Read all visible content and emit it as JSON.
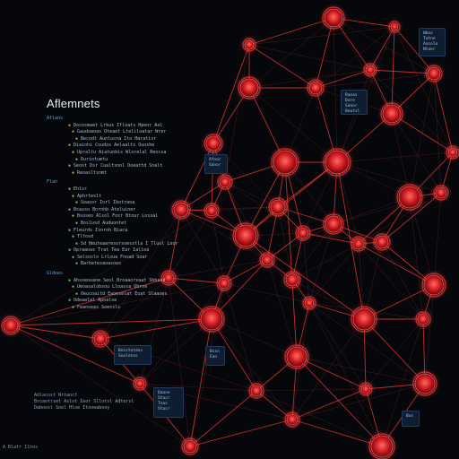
{
  "panel": {
    "title": "Aflemnets",
    "sections": [
      {
        "label": "Aflans",
        "items": [
          {
            "text": "Docosmaet Lrkus Ifloats Hpenr Aol",
            "mark": "y"
          },
          {
            "text": "Gaudoaoas Oteaet Lteliloatar Wrer",
            "mark": "y"
          },
          {
            "text": "Becodt Aunlucna Ito Haratisr",
            "mark": "y"
          },
          {
            "text": "Diaiohi Coudos Aelaalts Ouoshe",
            "mark": "y"
          },
          {
            "text": "Upraltu Aiatunbis Wlorelal Reocsa",
            "mark": "y"
          },
          {
            "text": "Ruriotumtu",
            "mark": "y"
          },
          {
            "text": "Seost Dsr Cualtsnol Ooeattd Snalt",
            "mark": "y"
          },
          {
            "text": "Reoasltsnmt",
            "mark": "y"
          }
        ]
      },
      {
        "label": "Flan",
        "items": [
          {
            "text": "Ehlsr",
            "mark": "y"
          },
          {
            "text": "Aphrteslt",
            "mark": "y"
          },
          {
            "text": "Soasor Iorl Ibotraoa",
            "mark": "y"
          },
          {
            "text": "Bsasso Bnrnhb Ateluiner",
            "mark": "y"
          },
          {
            "text": "Bsoseo Alsol Fosr Btnur Lossal",
            "mark": "y"
          },
          {
            "text": "Boslusd Auduontet",
            "mark": "y"
          },
          {
            "text": "Fleurds Isnroh Biaca",
            "mark": "g"
          },
          {
            "text": "Tlfosd",
            "mark": "g"
          },
          {
            "text": "Sd Heuteaaresorsoesstla I Tluol Loor",
            "mark": "g"
          },
          {
            "text": "Opraaoas Trat Tea Ear Ialloa",
            "mark": "g"
          },
          {
            "text": "Selsoslo Lrloua Fnoad Soar",
            "mark": "g"
          },
          {
            "text": "Barbetesaoasoes",
            "mark": "g"
          }
        ]
      },
      {
        "label": "Gldoes",
        "items": [
          {
            "text": "Ahsoeouaoe Seol Broaaorsaat Sbbasd",
            "mark": "g"
          },
          {
            "text": "Ueoasalobsou Lloassa Ubrse",
            "mark": "g"
          },
          {
            "text": "Oeucoaitd Eaoeselat Eoat Slaaoes",
            "mark": "g"
          },
          {
            "text": "Odeaalal Apoalse",
            "mark": "g"
          },
          {
            "text": "Feaoseas Soessls",
            "mark": "g"
          }
        ]
      }
    ]
  },
  "footer": {
    "heading": "Adlacnst Nrtanct",
    "lines": [
      "Brcaotrset Aslot Ieor Sllotsl Adtersl",
      "Daboosl Soel Hloe Itooeabooy"
    ]
  },
  "status_text": "A Blatr Ilhos",
  "info_cards": [
    {
      "id": "c1",
      "lines": [
        "Wbox Tatne",
        "Aasolo",
        "Ntaer"
      ]
    },
    {
      "id": "c2",
      "lines": [
        "Raoas Dore",
        "Sanor",
        "Beatsl"
      ]
    },
    {
      "id": "c3",
      "lines": [
        "Afnar",
        "Sanor"
      ]
    },
    {
      "id": "c4",
      "lines": [
        "Bosstatdos",
        "Snaletos"
      ]
    },
    {
      "id": "c5",
      "lines": [
        "Bssn",
        "Ean"
      ]
    },
    {
      "id": "c6",
      "lines": [
        "Daaoe",
        "Stacr Tnas",
        "Stacr"
      ]
    },
    {
      "id": "c7",
      "lines": [
        "Bos"
      ]
    }
  ],
  "colors": {
    "background": "#05070b",
    "node": "#e0282f",
    "node_glow": "#ff3b3b",
    "edge": "#ff3a35",
    "edge_faint": "#7a2626",
    "card": "#0f1d30"
  }
}
